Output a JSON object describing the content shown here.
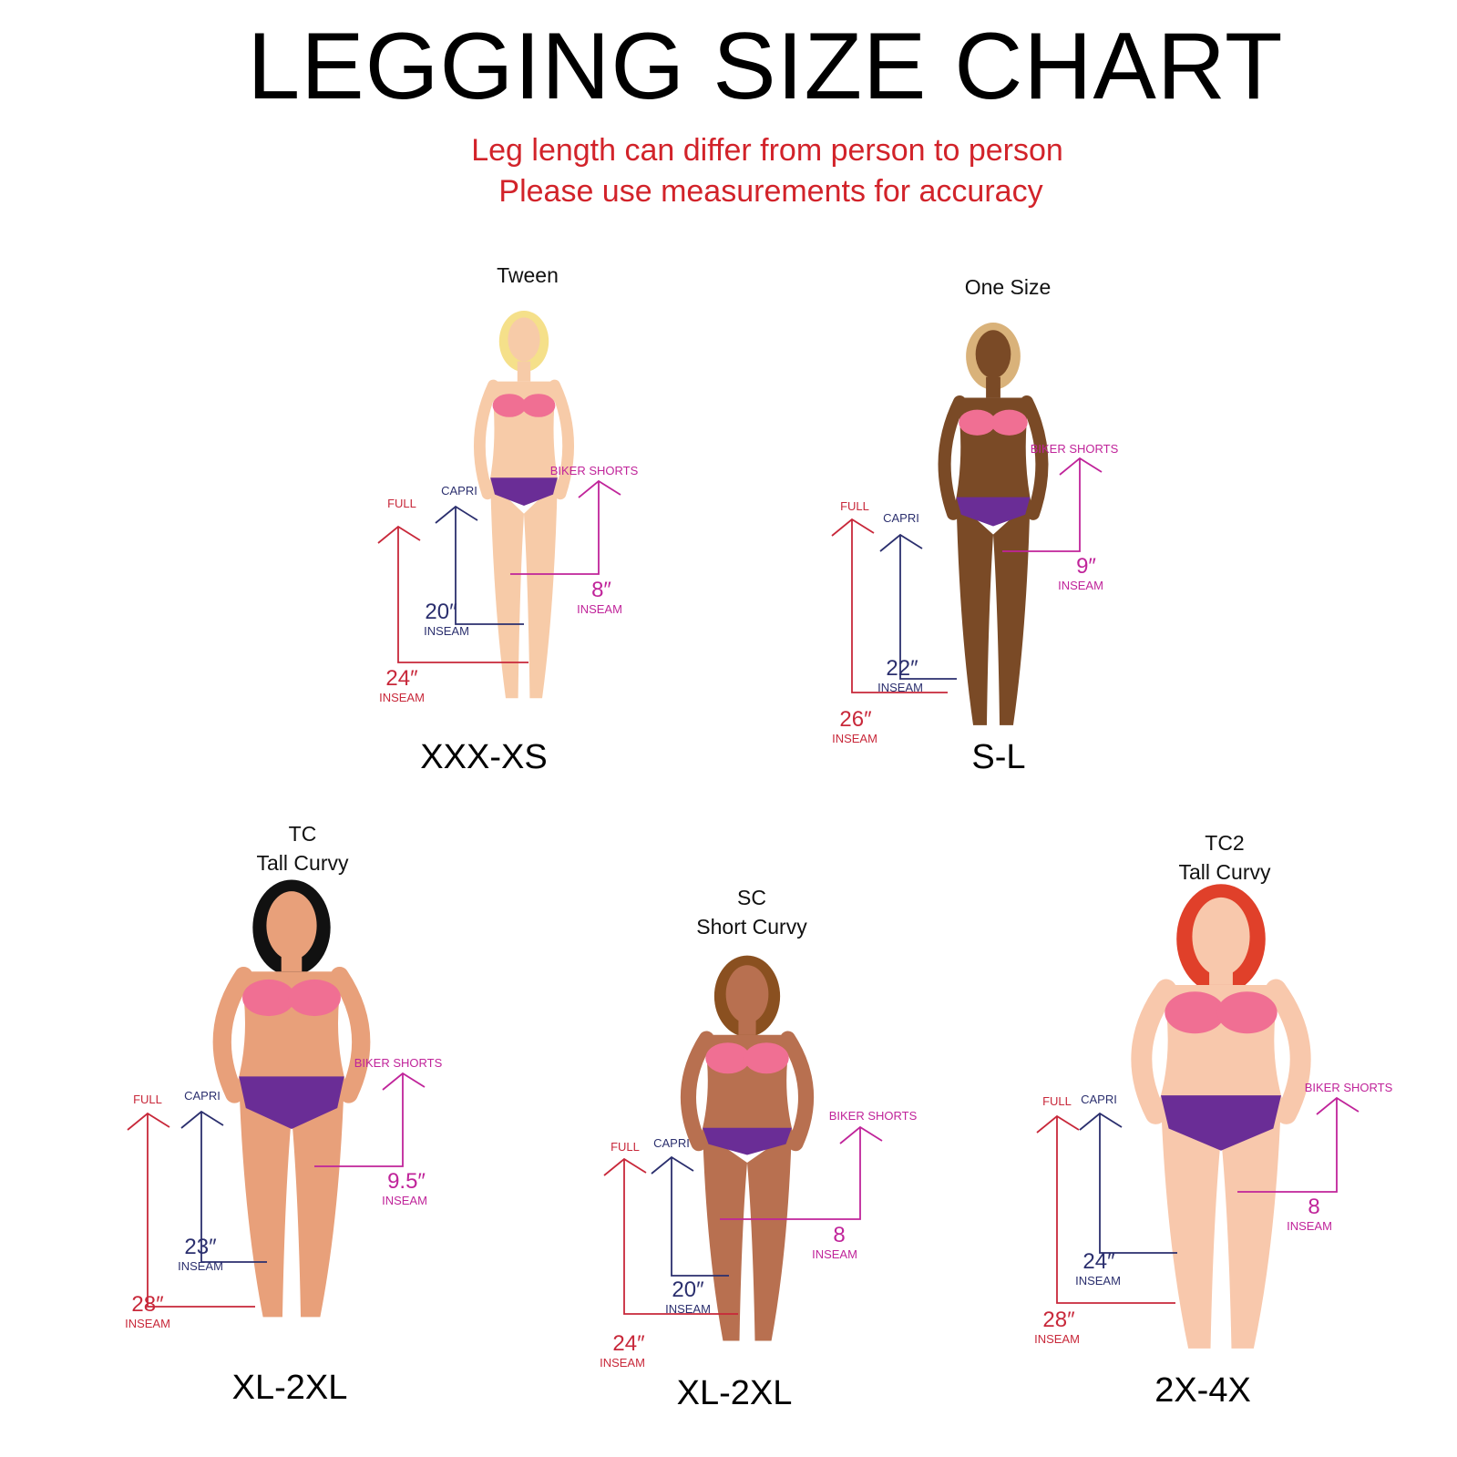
{
  "title": "LEGGING  SIZE CHART",
  "subtitle_lines": [
    "Leg length can differ from person to person",
    "Please use measurements for accuracy"
  ],
  "colors": {
    "full": "#c8283a",
    "capri": "#2b2f6e",
    "biker_shorts": "#c0249a",
    "subtitle": "#d2232a",
    "bra": "#f06f93",
    "briefs": "#6a2d96"
  },
  "labels": {
    "full": "FULL",
    "capri": "CAPRI",
    "biker_shorts": "BIKER SHORTS",
    "inseam": "INSEAM"
  },
  "panels": [
    {
      "title_lines": [
        "Tween"
      ],
      "size": "XXX-XS",
      "full": "24″",
      "capri": "20″",
      "biker_shorts": "8″",
      "skin": "#f7cba8",
      "hair": "#f5e08a",
      "briefs_style": "bikini"
    },
    {
      "title_lines": [
        "One Size"
      ],
      "size": "S-L",
      "full": "26″",
      "capri": "22″",
      "biker_shorts": "9″",
      "skin": "#7a4a26",
      "hair": "#d9b27a",
      "briefs_style": "bikini"
    },
    {
      "title_lines": [
        "TC",
        "Tall Curvy"
      ],
      "size": "XL-2XL",
      "full": "28″",
      "capri": "23″",
      "biker_shorts": "9.5″",
      "skin": "#e8a07a",
      "hair": "#111111",
      "briefs_style": "full"
    },
    {
      "title_lines": [
        "SC",
        "Short Curvy"
      ],
      "size": "XL-2XL",
      "full": "24″",
      "capri": "20″",
      "biker_shorts": "8",
      "skin": "#b87050",
      "hair": "#8a5020",
      "briefs_style": "bikini"
    },
    {
      "title_lines": [
        "TC2",
        "Tall Curvy"
      ],
      "size": "2X-4X",
      "full": "28″",
      "capri": "24″",
      "biker_shorts": "8",
      "skin": "#f8c8ac",
      "hair": "#e0402a",
      "briefs_style": "full"
    }
  ]
}
